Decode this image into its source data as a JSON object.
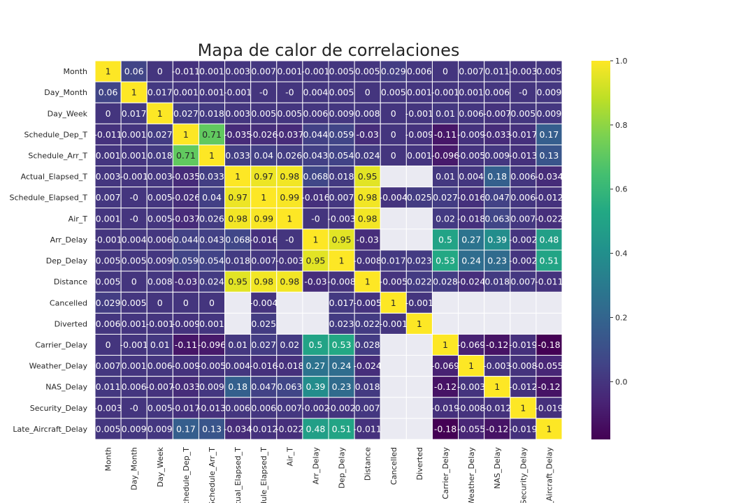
{
  "chart_data": {
    "type": "heatmap",
    "title": "Mapa de calor de correlaciones",
    "colormap": "viridis",
    "missing_color": "#eaeaf2",
    "cell_border_color": "#ffffff",
    "variables": [
      "Month",
      "Day_Month",
      "Day_Week",
      "Schedule_Dep_T",
      "Schedule_Arr_T",
      "Actual_Elapsed_T",
      "Schedule_Elapsed_T",
      "Air_T",
      "Arr_Delay",
      "Dep_Delay",
      "Distance",
      "Cancelled",
      "Diverted",
      "Carrier_Delay",
      "Weather_Delay",
      "NAS_Delay",
      "Security_Delay",
      "Late_Aircraft_Delay"
    ],
    "matrix": [
      [
        "1",
        "0.06",
        "0",
        "-0.011",
        "0.001",
        "0.003",
        "0.007",
        "0.001",
        "-0.001",
        "0.005",
        "0.005",
        "0.029",
        "0.006",
        "0",
        "0.007",
        "0.011",
        "-0.003",
        "0.005"
      ],
      [
        "0.06",
        "1",
        "0.017",
        "0.001",
        "0.001",
        "-0.001",
        "-0",
        "-0",
        "0.004",
        "0.005",
        "0",
        "0.005",
        "0.001",
        "-0.001",
        "0.001",
        "0.006",
        "-0",
        "0.009"
      ],
      [
        "0",
        "0.017",
        "1",
        "0.027",
        "0.018",
        "0.003",
        "0.005",
        "0.005",
        "0.006",
        "0.009",
        "0.008",
        "0",
        "-0.001",
        "0.01",
        "0.006",
        "-0.007",
        "0.005",
        "0.009"
      ],
      [
        "-0.011",
        "0.001",
        "0.027",
        "1",
        "0.71",
        "-0.035",
        "-0.026",
        "-0.037",
        "0.044",
        "0.059",
        "-0.03",
        "0",
        "-0.009",
        "-0.11",
        "-0.009",
        "-0.033",
        "-0.017",
        "0.17"
      ],
      [
        "0.001",
        "0.001",
        "0.018",
        "0.71",
        "1",
        "0.033",
        "0.04",
        "0.026",
        "0.043",
        "0.054",
        "0.024",
        "0",
        "0.001",
        "-0.096",
        "-0.005",
        "0.009",
        "-0.013",
        "0.13"
      ],
      [
        "0.003",
        "-0.001",
        "0.003",
        "-0.035",
        "0.033",
        "1",
        "0.97",
        "0.98",
        "0.068",
        "0.018",
        "0.95",
        null,
        null,
        "0.01",
        "0.004",
        "0.18",
        "0.006",
        "-0.034"
      ],
      [
        "0.007",
        "-0",
        "0.005",
        "-0.026",
        "0.04",
        "0.97",
        "1",
        "0.99",
        "-0.016",
        "0.007",
        "0.98",
        "-0.004",
        "0.025",
        "0.027",
        "-0.016",
        "0.047",
        "0.006",
        "-0.012"
      ],
      [
        "0.001",
        "-0",
        "0.005",
        "-0.037",
        "0.026",
        "0.98",
        "0.99",
        "1",
        "-0",
        "-0.003",
        "0.98",
        null,
        null,
        "0.02",
        "-0.018",
        "0.063",
        "0.007",
        "-0.022"
      ],
      [
        "-0.001",
        "0.004",
        "0.006",
        "0.044",
        "0.043",
        "0.068",
        "-0.016",
        "-0",
        "1",
        "0.95",
        "-0.03",
        null,
        null,
        "0.5",
        "0.27",
        "0.39",
        "-0.002",
        "0.48"
      ],
      [
        "0.005",
        "0.005",
        "0.009",
        "0.059",
        "0.054",
        "0.018",
        "0.007",
        "-0.003",
        "0.95",
        "1",
        "-0.008",
        "0.017",
        "0.023",
        "0.53",
        "0.24",
        "0.23",
        "-0.002",
        "0.51"
      ],
      [
        "0.005",
        "0",
        "0.008",
        "-0.03",
        "0.024",
        "0.95",
        "0.98",
        "0.98",
        "-0.03",
        "-0.008",
        "1",
        "-0.005",
        "0.022",
        "0.028",
        "-0.024",
        "0.018",
        "0.007",
        "-0.011"
      ],
      [
        "0.029",
        "0.005",
        "0",
        "0",
        "0",
        null,
        "-0.004",
        null,
        null,
        "0.017",
        "-0.005",
        "1",
        "-0.001",
        null,
        null,
        null,
        null,
        null
      ],
      [
        "0.006",
        "0.001",
        "-0.001",
        "-0.009",
        "0.001",
        null,
        "0.025",
        null,
        null,
        "0.023",
        "0.022",
        "-0.001",
        "1",
        null,
        null,
        null,
        null,
        null
      ],
      [
        "0",
        "-0.001",
        "0.01",
        "-0.11",
        "-0.096",
        "0.01",
        "0.027",
        "0.02",
        "0.5",
        "0.53",
        "0.028",
        null,
        null,
        "1",
        "-0.069",
        "-0.12",
        "-0.019",
        "-0.18"
      ],
      [
        "0.007",
        "0.001",
        "0.006",
        "-0.009",
        "-0.005",
        "0.004",
        "-0.016",
        "-0.018",
        "0.27",
        "0.24",
        "-0.024",
        null,
        null,
        "-0.069",
        "1",
        "-0.003",
        "-0.008",
        "-0.055"
      ],
      [
        "0.011",
        "0.006",
        "-0.007",
        "-0.033",
        "0.009",
        "0.18",
        "0.047",
        "0.063",
        "0.39",
        "0.23",
        "0.018",
        null,
        null,
        "-0.12",
        "-0.003",
        "1",
        "-0.012",
        "-0.12"
      ],
      [
        "-0.003",
        "-0",
        "0.005",
        "-0.017",
        "-0.013",
        "0.006",
        "0.006",
        "0.007",
        "-0.002",
        "-0.002",
        "0.007",
        null,
        null,
        "-0.019",
        "-0.008",
        "-0.012",
        "1",
        "-0.019"
      ],
      [
        "0.005",
        "0.009",
        "0.009",
        "0.17",
        "0.13",
        "-0.034",
        "-0.012",
        "-0.022",
        "0.48",
        "0.51",
        "-0.011",
        null,
        null,
        "-0.18",
        "-0.055",
        "-0.12",
        "-0.019",
        "1"
      ]
    ],
    "vmin": -0.18,
    "vmax": 1.0,
    "colorbar_ticks": [
      1.0,
      0.8,
      0.6,
      0.4,
      0.2,
      0.0
    ],
    "colorbar_tick_labels": [
      "1.0",
      "0.8",
      "0.6",
      "0.4",
      "0.2",
      "0.0"
    ]
  }
}
